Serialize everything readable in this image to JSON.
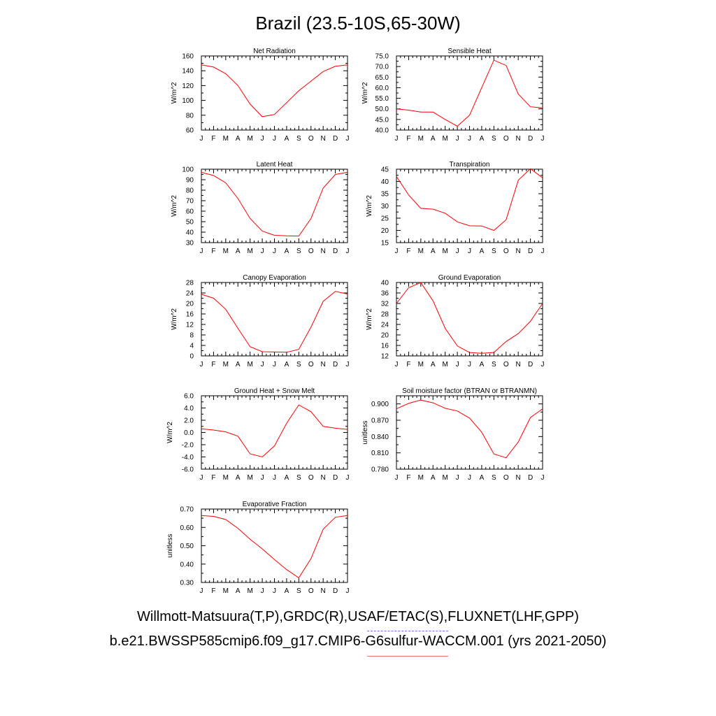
{
  "title": "Brazil (23.5-10S,65-30W)",
  "footer_line1": "Willmott-Matsuura(T,P),GRDC(R),USAF/ETAC(S),FLUXNET(LHF,GPP)",
  "footer_line2": "b.e21.BWSSP585cmip6.f09_g17.CMIP6-G6sulfur-WACCM.001 (yrs 2021-2050)",
  "colors": {
    "line": "#ff0000",
    "axis": "#000000"
  },
  "chart_data": [
    {
      "type": "line",
      "title": "Net Radiation",
      "ylabel": "W/m^2",
      "categories": [
        "J",
        "F",
        "M",
        "A",
        "M",
        "J",
        "J",
        "A",
        "S",
        "O",
        "N",
        "D",
        "J"
      ],
      "values": [
        148,
        145,
        136,
        120,
        95,
        78,
        81,
        97,
        113,
        126,
        139,
        146,
        148
      ],
      "ylim": [
        60,
        160
      ],
      "yticks": [
        "60",
        "80",
        "100",
        "120",
        "140",
        "160"
      ],
      "grid": false
    },
    {
      "type": "line",
      "title": "Sensible Heat",
      "ylabel": "W/m^2",
      "categories": [
        "J",
        "F",
        "M",
        "A",
        "M",
        "J",
        "J",
        "A",
        "S",
        "O",
        "N",
        "D",
        "J"
      ],
      "values": [
        50.0,
        49.4,
        48.5,
        48.5,
        45.0,
        41.8,
        47.0,
        60.0,
        73.0,
        70.5,
        57.0,
        51.0,
        50.5
      ],
      "ylim": [
        40,
        75
      ],
      "yticks": [
        "40.0",
        "45.0",
        "50.0",
        "55.0",
        "60.0",
        "65.0",
        "70.0",
        "75.0"
      ],
      "grid": false
    },
    {
      "type": "line",
      "title": "Latent Heat",
      "ylabel": "W/m^2",
      "categories": [
        "J",
        "F",
        "M",
        "A",
        "M",
        "J",
        "J",
        "A",
        "S",
        "O",
        "N",
        "D",
        "J"
      ],
      "values": [
        97,
        94,
        87,
        72,
        53,
        41,
        37,
        36.5,
        36.3,
        53,
        82,
        95,
        97
      ],
      "ylim": [
        30,
        100
      ],
      "yticks": [
        "30",
        "40",
        "50",
        "60",
        "70",
        "80",
        "90",
        "100"
      ],
      "grid": false
    },
    {
      "type": "line",
      "title": "Transpiration",
      "ylabel": "W/m^2",
      "categories": [
        "J",
        "F",
        "M",
        "A",
        "M",
        "J",
        "J",
        "A",
        "S",
        "O",
        "N",
        "D",
        "J"
      ],
      "values": [
        42,
        34.5,
        29,
        28.7,
        27,
        23.5,
        21.9,
        21.8,
        20,
        24.3,
        40.5,
        45.2,
        41.5
      ],
      "ylim": [
        15,
        45
      ],
      "yticks": [
        "15",
        "20",
        "25",
        "30",
        "35",
        "40",
        "45"
      ],
      "grid": false
    },
    {
      "type": "line",
      "title": "Canopy Evaporation",
      "ylabel": "W/m^2",
      "categories": [
        "J",
        "F",
        "M",
        "A",
        "M",
        "J",
        "J",
        "A",
        "S",
        "O",
        "N",
        "D",
        "J"
      ],
      "values": [
        23.5,
        22.0,
        17.8,
        10.5,
        3.5,
        1.6,
        1.5,
        1.4,
        2.5,
        11.0,
        20.8,
        24.6,
        23.6
      ],
      "ylim": [
        0,
        28
      ],
      "yticks": [
        "0",
        "4",
        "8",
        "12",
        "16",
        "20",
        "24",
        "28"
      ],
      "grid": false
    },
    {
      "type": "line",
      "title": "Ground Evaporation",
      "ylabel": "W/m^2",
      "categories": [
        "J",
        "F",
        "M",
        "A",
        "M",
        "J",
        "J",
        "A",
        "S",
        "O",
        "N",
        "D",
        "J"
      ],
      "values": [
        32,
        38,
        40,
        33,
        22.5,
        15.8,
        13.3,
        13,
        13.3,
        17.5,
        20.5,
        25.2,
        32
      ],
      "ylim": [
        12,
        40
      ],
      "yticks": [
        "12",
        "16",
        "20",
        "24",
        "28",
        "32",
        "36",
        "40"
      ],
      "grid": false
    },
    {
      "type": "line",
      "title": "Ground Heat + Snow Melt",
      "ylabel": "W/m^2",
      "categories": [
        "J",
        "F",
        "M",
        "A",
        "M",
        "J",
        "J",
        "A",
        "S",
        "O",
        "N",
        "D",
        "J"
      ],
      "values": [
        0.6,
        0.4,
        0.1,
        -0.6,
        -3.5,
        -4.0,
        -2.2,
        1.5,
        4.5,
        3.4,
        1.0,
        0.7,
        0.5
      ],
      "ylim": [
        -6,
        6
      ],
      "yticks": [
        "-6.0",
        "-4.0",
        "-2.0",
        "0.0",
        "2.0",
        "4.0",
        "6.0"
      ],
      "grid": false
    },
    {
      "type": "line",
      "title": "Soil moisture factor (BTRAN or BTRANMN)",
      "ylabel": "unitless",
      "categories": [
        "J",
        "F",
        "M",
        "A",
        "M",
        "J",
        "J",
        "A",
        "S",
        "O",
        "N",
        "D",
        "J"
      ],
      "values": [
        0.891,
        0.901,
        0.907,
        0.902,
        0.892,
        0.887,
        0.874,
        0.848,
        0.808,
        0.801,
        0.83,
        0.875,
        0.891
      ],
      "ylim": [
        0.78,
        0.915
      ],
      "yticks": [
        "0.780",
        "0.810",
        "0.840",
        "0.870",
        "0.900"
      ],
      "ytick_values": [
        0.78,
        0.81,
        0.84,
        0.87,
        0.9
      ],
      "grid": false
    },
    {
      "type": "line",
      "title": "Evaporative Fraction",
      "ylabel": "unitless",
      "categories": [
        "J",
        "F",
        "M",
        "A",
        "M",
        "J",
        "J",
        "A",
        "S",
        "O",
        "N",
        "D",
        "J"
      ],
      "values": [
        0.665,
        0.66,
        0.643,
        0.595,
        0.535,
        0.483,
        0.425,
        0.37,
        0.325,
        0.43,
        0.59,
        0.655,
        0.665
      ],
      "ylim": [
        0.3,
        0.7
      ],
      "yticks": [
        "0.30",
        "0.40",
        "0.50",
        "0.60",
        "0.70"
      ],
      "grid": false
    }
  ]
}
